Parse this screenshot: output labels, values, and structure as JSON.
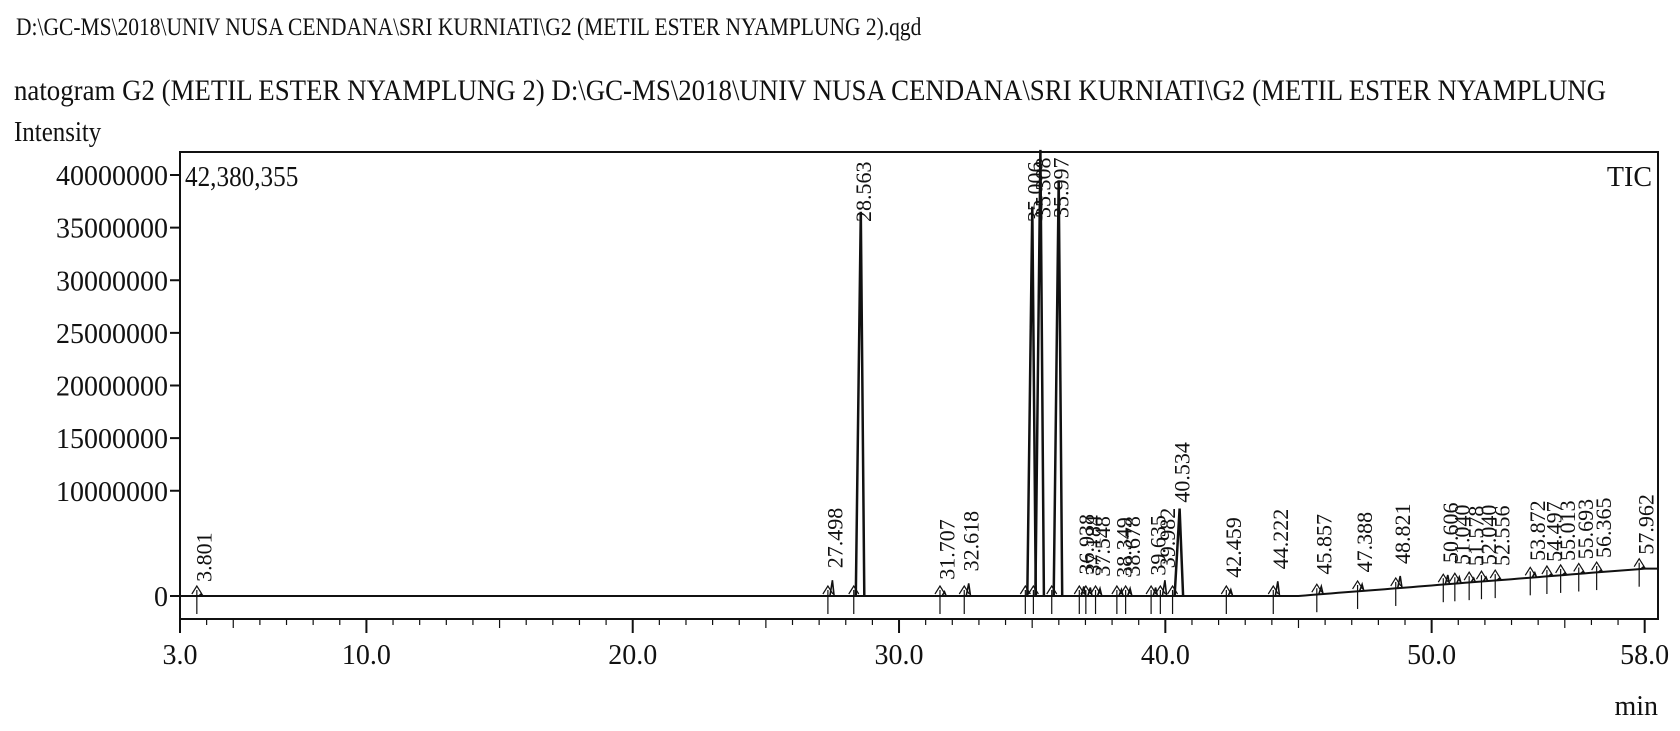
{
  "header": {
    "file_path": "D:\\GC-MS\\2018\\UNIV NUSA CENDANA\\SRI KURNIATI\\G2 (METIL ESTER NYAMPLUNG 2).qgd",
    "chromatogram_title": "natogram G2 (METIL ESTER NYAMPLUNG 2) D:\\GC-MS\\2018\\UNIV NUSA CENDANA\\SRI KURNIATI\\G2 (METIL ESTER NYAMPLUNG"
  },
  "chart_data": {
    "type": "line",
    "title": "",
    "xlabel": "min",
    "ylabel": "Intensity",
    "max_intensity_label": "42,380,355",
    "trace_label": "TIC",
    "xlim": [
      3.0,
      58.5
    ],
    "ylim": [
      0,
      42380355
    ],
    "x_ticks": [
      {
        "value": 3.0,
        "label": "3.0"
      },
      {
        "value": 10.0,
        "label": "10.0"
      },
      {
        "value": 20.0,
        "label": "20.0"
      },
      {
        "value": 30.0,
        "label": "30.0"
      },
      {
        "value": 40.0,
        "label": "40.0"
      },
      {
        "value": 50.0,
        "label": "50.0"
      },
      {
        "value": 58.0,
        "label": "58.0"
      }
    ],
    "y_ticks": [
      {
        "value": 0,
        "label": "0"
      },
      {
        "value": 10000000,
        "label": "10000000"
      },
      {
        "value": 15000000,
        "label": "15000000"
      },
      {
        "value": 20000000,
        "label": "20000000"
      },
      {
        "value": 25000000,
        "label": "25000000"
      },
      {
        "value": 30000000,
        "label": "30000000"
      },
      {
        "value": 35000000,
        "label": "35000000"
      },
      {
        "value": 40000000,
        "label": "40000000"
      }
    ],
    "peaks": [
      {
        "rt": 3.801,
        "label": "3.801",
        "height": 100000
      },
      {
        "rt": 27.498,
        "label": "27.498",
        "height": 1500000
      },
      {
        "rt": 28.563,
        "label": "28.563",
        "height": 36500000
      },
      {
        "rt": 31.707,
        "label": "31.707",
        "height": 400000
      },
      {
        "rt": 32.618,
        "label": "32.618",
        "height": 1200000
      },
      {
        "rt": 35.006,
        "label": "35.006",
        "height": 37000000
      },
      {
        "rt": 35.308,
        "label": "35.308",
        "height": 42380355
      },
      {
        "rt": 35.997,
        "label": "35.997",
        "height": 39500000
      },
      {
        "rt": 36.938,
        "label": "36.938",
        "height": 900000
      },
      {
        "rt": 37.184,
        "label": "37.184",
        "height": 800000
      },
      {
        "rt": 37.548,
        "label": "37.548",
        "height": 700000
      },
      {
        "rt": 38.349,
        "label": "38.349",
        "height": 600000
      },
      {
        "rt": 38.678,
        "label": "38.678",
        "height": 700000
      },
      {
        "rt": 39.635,
        "label": "39.635",
        "height": 800000
      },
      {
        "rt": 39.982,
        "label": "39.982",
        "height": 1500000
      },
      {
        "rt": 40.534,
        "label": "40.534",
        "height": 8300000
      },
      {
        "rt": 42.459,
        "label": "42.459",
        "height": 600000
      },
      {
        "rt": 44.222,
        "label": "44.222",
        "height": 1400000
      },
      {
        "rt": 45.857,
        "label": "45.857",
        "height": 900000
      },
      {
        "rt": 47.388,
        "label": "47.388",
        "height": 1100000
      },
      {
        "rt": 48.821,
        "label": "48.821",
        "height": 1900000
      },
      {
        "rt": 50.606,
        "label": "50.606",
        "height": 2000000
      },
      {
        "rt": 51.04,
        "label": "51.040",
        "height": 1800000
      },
      {
        "rt": 51.578,
        "label": "51.578",
        "height": 1700000
      },
      {
        "rt": 52.04,
        "label": "52.040",
        "height": 1800000
      },
      {
        "rt": 52.556,
        "label": "52.556",
        "height": 1700000
      },
      {
        "rt": 53.872,
        "label": "53.872",
        "height": 2200000
      },
      {
        "rt": 54.497,
        "label": "54.497",
        "height": 2000000
      },
      {
        "rt": 55.013,
        "label": "55.013",
        "height": 1900000
      },
      {
        "rt": 55.693,
        "label": "55.693",
        "height": 2100000
      },
      {
        "rt": 56.365,
        "label": "56.365",
        "height": 2300000
      },
      {
        "rt": 57.962,
        "label": "57.962",
        "height": 2600000
      }
    ],
    "grid": false,
    "legend": "none"
  }
}
